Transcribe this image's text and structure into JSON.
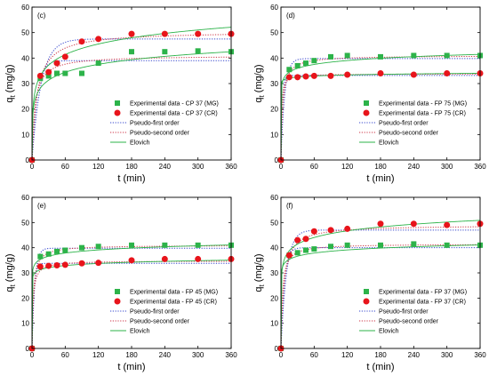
{
  "colors": {
    "mg": "#2db34a",
    "cr": "#e8141b",
    "pfo": "#3344cc",
    "pso": "#cc3344",
    "elovich": "#2db34a"
  },
  "chart_data": [
    {
      "type": "scatter",
      "panel_label": "(c)",
      "xlabel": "t (min)",
      "ylabel": "qt (mg/g)",
      "xlim": [
        0,
        360
      ],
      "ylim": [
        0,
        60
      ],
      "xticks": [
        0,
        60,
        120,
        180,
        240,
        300,
        360
      ],
      "yticks": [
        0,
        10,
        20,
        30,
        40,
        50,
        60
      ],
      "legend": {
        "placement": "bottom-right",
        "entries": [
          "Experimental data - CP 37 (MG)",
          "Experimental data - CP 37 (CR)",
          "Pseudo-first order",
          "Pseudo-second order",
          "Elovich"
        ]
      },
      "series": [
        {
          "name": "Experimental data - CP 37 (MG)",
          "kind": "square",
          "color": "mg",
          "x": [
            0,
            15,
            30,
            45,
            60,
            90,
            120,
            180,
            240,
            300,
            360
          ],
          "y": [
            0,
            32.0,
            33.0,
            34.0,
            34.0,
            34.0,
            38.0,
            42.5,
            42.5,
            42.8,
            42.5
          ]
        },
        {
          "name": "Experimental data - CP 37 (CR)",
          "kind": "circle",
          "color": "cr",
          "x": [
            0,
            15,
            30,
            45,
            60,
            90,
            120,
            180,
            240,
            300,
            360
          ],
          "y": [
            0,
            33.0,
            34.5,
            38.0,
            40.5,
            46.5,
            47.5,
            49.5,
            49.5,
            49.5,
            49.5
          ]
        },
        {
          "name": "Pseudo-first order (MG)",
          "kind": "fit",
          "model": "pfo",
          "color": "pfo",
          "qe": 39.0,
          "k": 0.11
        },
        {
          "name": "Pseudo-first order (CR)",
          "kind": "fit",
          "model": "pfo",
          "color": "pfo",
          "qe": 47.5,
          "k": 0.06
        },
        {
          "name": "Pseudo-second order (MG)",
          "kind": "fit",
          "model": "pso",
          "color": "pso",
          "qe": 41.0,
          "k": 0.0045
        },
        {
          "name": "Pseudo-second order (CR)",
          "kind": "fit",
          "model": "pso",
          "color": "pso",
          "qe": 50.5,
          "k": 0.0022
        },
        {
          "name": "Elovich (MG)",
          "kind": "fit",
          "model": "elovich",
          "color": "elovich",
          "a": 16.0,
          "b": 4.5
        },
        {
          "name": "Elovich (CR)",
          "kind": "fit",
          "model": "elovich",
          "color": "elovich",
          "a": 16.8,
          "b": 6.0
        }
      ]
    },
    {
      "type": "scatter",
      "panel_label": "(d)",
      "xlabel": "t (min)",
      "ylabel": "qt (mg/g)",
      "xlim": [
        0,
        360
      ],
      "ylim": [
        0,
        60
      ],
      "xticks": [
        0,
        60,
        120,
        180,
        240,
        300,
        360
      ],
      "yticks": [
        0,
        10,
        20,
        30,
        40,
        50,
        60
      ],
      "legend": {
        "placement": "bottom-right",
        "entries": [
          "Experimental data - FP 75 (MG)",
          "Experimental data - FP 75 (CR)",
          "Pseudo-first order",
          "Pseudo-second order",
          "Elovich"
        ]
      },
      "series": [
        {
          "name": "Experimental data - FP 75 (MG)",
          "kind": "square",
          "color": "mg",
          "x": [
            0,
            15,
            30,
            45,
            60,
            90,
            120,
            180,
            240,
            300,
            360
          ],
          "y": [
            0,
            35.5,
            37.0,
            38.0,
            39.0,
            40.5,
            41.0,
            40.5,
            41.0,
            41.0,
            41.0
          ]
        },
        {
          "name": "Experimental data - FP 75 (CR)",
          "kind": "circle",
          "color": "cr",
          "x": [
            0,
            15,
            30,
            45,
            60,
            90,
            120,
            180,
            240,
            300,
            360
          ],
          "y": [
            0,
            32.5,
            32.5,
            32.8,
            33.0,
            33.0,
            33.5,
            34.0,
            33.5,
            34.0,
            34.0
          ]
        },
        {
          "name": "Pseudo-first order (MG)",
          "kind": "fit",
          "model": "pfo",
          "color": "pfo",
          "qe": 39.8,
          "k": 0.15
        },
        {
          "name": "Pseudo-first order (CR)",
          "kind": "fit",
          "model": "pfo",
          "color": "pfo",
          "qe": 33.2,
          "k": 0.4
        },
        {
          "name": "Pseudo-second order (MG)",
          "kind": "fit",
          "model": "pso",
          "color": "pso",
          "qe": 41.0,
          "k": 0.008
        },
        {
          "name": "Pseudo-second order (CR)",
          "kind": "fit",
          "model": "pso",
          "color": "pso",
          "qe": 33.8,
          "k": 0.03
        },
        {
          "name": "Elovich (MG)",
          "kind": "fit",
          "model": "elovich",
          "color": "elovich",
          "a": 28.5,
          "b": 2.2
        },
        {
          "name": "Elovich (CR)",
          "kind": "fit",
          "model": "elovich",
          "color": "elovich",
          "a": 30.5,
          "b": 0.6
        }
      ]
    },
    {
      "type": "scatter",
      "panel_label": "(e)",
      "xlabel": "t (min)",
      "ylabel": "qt (mg/g)",
      "xlim": [
        0,
        360
      ],
      "ylim": [
        0,
        60
      ],
      "xticks": [
        0,
        60,
        120,
        180,
        240,
        300,
        360
      ],
      "yticks": [
        0,
        10,
        20,
        30,
        40,
        50,
        60
      ],
      "legend": {
        "placement": "bottom-right",
        "entries": [
          "Experimental data - FP 45 (MG)",
          "Experimental data - FP 45 (CR)",
          "Pseudo-first order",
          "Pseudo-second order",
          "Elovich"
        ]
      },
      "series": [
        {
          "name": "Experimental data - FP 45 (MG)",
          "kind": "square",
          "color": "mg",
          "x": [
            0,
            15,
            30,
            45,
            60,
            90,
            120,
            180,
            240,
            300,
            360
          ],
          "y": [
            0,
            36.5,
            37.5,
            38.5,
            39.0,
            40.0,
            40.5,
            41.0,
            41.0,
            41.0,
            41.0
          ]
        },
        {
          "name": "Experimental data - FP 45 (CR)",
          "kind": "circle",
          "color": "cr",
          "x": [
            0,
            15,
            30,
            45,
            60,
            90,
            120,
            180,
            240,
            300,
            360
          ],
          "y": [
            0,
            32.5,
            32.8,
            33.0,
            33.2,
            33.8,
            34.0,
            35.0,
            35.5,
            35.5,
            35.5
          ]
        },
        {
          "name": "Pseudo-first order (MG)",
          "kind": "fit",
          "model": "pfo",
          "color": "pfo",
          "qe": 39.8,
          "k": 0.2
        },
        {
          "name": "Pseudo-first order (CR)",
          "kind": "fit",
          "model": "pfo",
          "color": "pfo",
          "qe": 33.8,
          "k": 0.3
        },
        {
          "name": "Pseudo-second order (MG)",
          "kind": "fit",
          "model": "pso",
          "color": "pso",
          "qe": 41.0,
          "k": 0.01
        },
        {
          "name": "Pseudo-second order (CR)",
          "kind": "fit",
          "model": "pso",
          "color": "pso",
          "qe": 34.8,
          "k": 0.015
        },
        {
          "name": "Elovich (MG)",
          "kind": "fit",
          "model": "elovich",
          "color": "elovich",
          "a": 30.5,
          "b": 1.8
        },
        {
          "name": "Elovich (CR)",
          "kind": "fit",
          "model": "elovich",
          "color": "elovich",
          "a": 28.0,
          "b": 1.2
        }
      ]
    },
    {
      "type": "scatter",
      "panel_label": "(f)",
      "xlabel": "t (min)",
      "ylabel": "qt (mg/g)",
      "xlim": [
        0,
        360
      ],
      "ylim": [
        0,
        60
      ],
      "xticks": [
        0,
        60,
        120,
        180,
        240,
        300,
        360
      ],
      "yticks": [
        0,
        10,
        20,
        30,
        40,
        50,
        60
      ],
      "legend": {
        "placement": "bottom-right",
        "entries": [
          "Experimental data - FP 37 (MG)",
          "Experimental data - FP 37 (CR)",
          "Pseudo-first order",
          "Pseudo-second order",
          "Elovich"
        ]
      },
      "series": [
        {
          "name": "Experimental data - FP 37 (MG)",
          "kind": "square",
          "color": "mg",
          "x": [
            0,
            15,
            30,
            45,
            60,
            90,
            120,
            180,
            240,
            300,
            360
          ],
          "y": [
            0,
            37.0,
            38.0,
            39.0,
            39.5,
            40.5,
            41.0,
            41.0,
            41.5,
            41.0,
            41.0
          ]
        },
        {
          "name": "Experimental data - FP 37 (CR)",
          "kind": "circle",
          "color": "cr",
          "x": [
            0,
            15,
            30,
            45,
            60,
            90,
            120,
            180,
            240,
            300,
            360
          ],
          "y": [
            0,
            37.0,
            43.0,
            43.5,
            46.5,
            47.0,
            47.5,
            49.5,
            49.5,
            49.0,
            49.5
          ]
        },
        {
          "name": "Pseudo-first order (MG)",
          "kind": "fit",
          "model": "pfo",
          "color": "pfo",
          "qe": 40.0,
          "k": 0.17
        },
        {
          "name": "Pseudo-first order (CR)",
          "kind": "fit",
          "model": "pfo",
          "color": "pfo",
          "qe": 47.0,
          "k": 0.1
        },
        {
          "name": "Pseudo-second order (MG)",
          "kind": "fit",
          "model": "pso",
          "color": "pso",
          "qe": 41.5,
          "k": 0.009
        },
        {
          "name": "Pseudo-second order (CR)",
          "kind": "fit",
          "model": "pso",
          "color": "pso",
          "qe": 49.0,
          "k": 0.004
        },
        {
          "name": "Elovich (MG)",
          "kind": "fit",
          "model": "elovich",
          "color": "elovich",
          "a": 30.5,
          "b": 1.8
        },
        {
          "name": "Elovich (CR)",
          "kind": "fit",
          "model": "elovich",
          "color": "elovich",
          "a": 28.5,
          "b": 3.8
        }
      ]
    }
  ]
}
